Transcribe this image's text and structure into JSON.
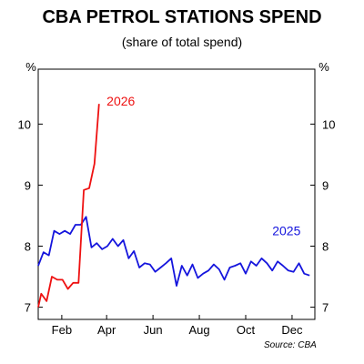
{
  "chart_data": {
    "type": "line",
    "title": "CBA PETROL STATIONS SPEND",
    "subtitle": "(share of total spend)",
    "left_unit": "%",
    "right_unit": "%",
    "ylim": [
      6.8,
      10.9
    ],
    "yticks": [
      7,
      8,
      9,
      10
    ],
    "xlim": [
      "2025-01-01",
      "2025-12-31"
    ],
    "xticks": [
      {
        "date": "2025-02-01",
        "label": "Feb"
      },
      {
        "date": "2025-04-01",
        "label": "Apr"
      },
      {
        "date": "2025-06-01",
        "label": "Jun"
      },
      {
        "date": "2025-08-01",
        "label": "Aug"
      },
      {
        "date": "2025-10-01",
        "label": "Oct"
      },
      {
        "date": "2025-12-01",
        "label": "Dec"
      }
    ],
    "grid": false,
    "source": "Source: CBA",
    "series": [
      {
        "name": "2025",
        "color": "#1515dd",
        "label_at": {
          "x": "2025-11-05",
          "y": 8.18
        },
        "points": [
          [
            "2025-01-01",
            7.68
          ],
          [
            "2025-01-08",
            7.9
          ],
          [
            "2025-01-15",
            7.85
          ],
          [
            "2025-01-22",
            8.25
          ],
          [
            "2025-01-29",
            8.2
          ],
          [
            "2025-02-05",
            8.25
          ],
          [
            "2025-02-12",
            8.2
          ],
          [
            "2025-02-19",
            8.35
          ],
          [
            "2025-02-26",
            8.35
          ],
          [
            "2025-03-05",
            8.48
          ],
          [
            "2025-03-12",
            7.98
          ],
          [
            "2025-03-19",
            8.05
          ],
          [
            "2025-03-26",
            7.95
          ],
          [
            "2025-04-02",
            8.0
          ],
          [
            "2025-04-09",
            8.12
          ],
          [
            "2025-04-16",
            8.0
          ],
          [
            "2025-04-23",
            8.1
          ],
          [
            "2025-04-30",
            7.8
          ],
          [
            "2025-05-07",
            7.92
          ],
          [
            "2025-05-14",
            7.65
          ],
          [
            "2025-05-21",
            7.72
          ],
          [
            "2025-05-28",
            7.7
          ],
          [
            "2025-06-04",
            7.58
          ],
          [
            "2025-06-11",
            7.65
          ],
          [
            "2025-06-18",
            7.72
          ],
          [
            "2025-06-25",
            7.8
          ],
          [
            "2025-07-02",
            7.35
          ],
          [
            "2025-07-09",
            7.68
          ],
          [
            "2025-07-16",
            7.52
          ],
          [
            "2025-07-23",
            7.7
          ],
          [
            "2025-07-30",
            7.48
          ],
          [
            "2025-08-06",
            7.55
          ],
          [
            "2025-08-13",
            7.6
          ],
          [
            "2025-08-20",
            7.7
          ],
          [
            "2025-08-27",
            7.62
          ],
          [
            "2025-09-03",
            7.45
          ],
          [
            "2025-09-10",
            7.65
          ],
          [
            "2025-09-17",
            7.68
          ],
          [
            "2025-09-24",
            7.72
          ],
          [
            "2025-10-01",
            7.55
          ],
          [
            "2025-10-08",
            7.75
          ],
          [
            "2025-10-15",
            7.68
          ],
          [
            "2025-10-22",
            7.8
          ],
          [
            "2025-10-29",
            7.72
          ],
          [
            "2025-11-05",
            7.6
          ],
          [
            "2025-11-12",
            7.75
          ],
          [
            "2025-11-19",
            7.68
          ],
          [
            "2025-11-26",
            7.6
          ],
          [
            "2025-12-03",
            7.58
          ],
          [
            "2025-12-10",
            7.72
          ],
          [
            "2025-12-17",
            7.55
          ],
          [
            "2025-12-24",
            7.52
          ]
        ]
      },
      {
        "name": "2026",
        "color": "#ee1111",
        "label_at": {
          "x": "2025-04-01",
          "y": 10.3
        },
        "points": [
          [
            "2025-01-01",
            7.0
          ],
          [
            "2025-01-05",
            7.22
          ],
          [
            "2025-01-12",
            7.1
          ],
          [
            "2025-01-19",
            7.5
          ],
          [
            "2025-01-26",
            7.45
          ],
          [
            "2025-02-02",
            7.45
          ],
          [
            "2025-02-09",
            7.3
          ],
          [
            "2025-02-16",
            7.4
          ],
          [
            "2025-02-23",
            7.4
          ],
          [
            "2025-03-02",
            8.92
          ],
          [
            "2025-03-09",
            8.95
          ],
          [
            "2025-03-16",
            9.35
          ],
          [
            "2025-03-22",
            10.33
          ]
        ]
      }
    ]
  }
}
